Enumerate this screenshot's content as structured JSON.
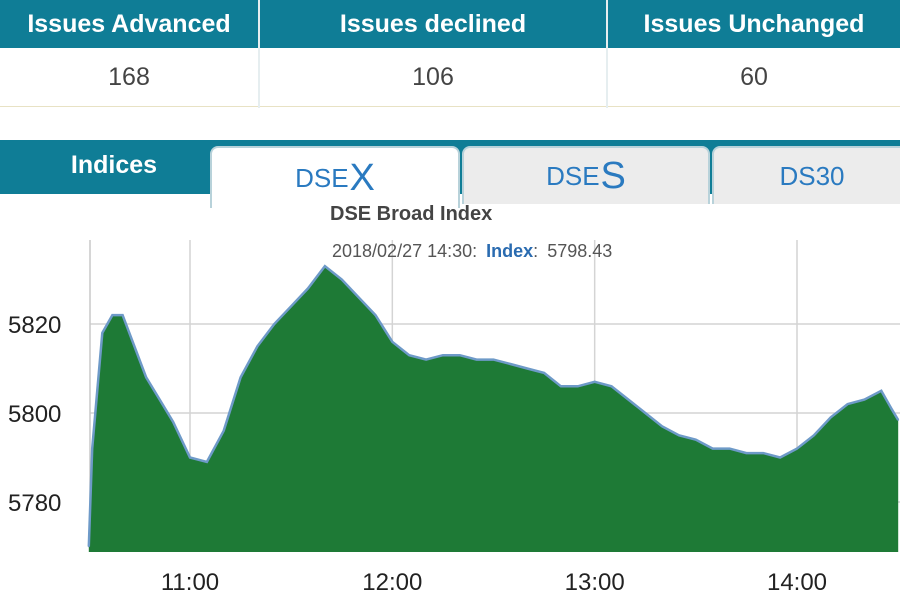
{
  "stats": {
    "advanced_label": "Issues Advanced",
    "advanced_value": "168",
    "declined_label": "Issues declined",
    "declined_value": "106",
    "unchanged_label": "Issues Unchanged",
    "unchanged_value": "60"
  },
  "tabs": {
    "indices_label": "Indices",
    "dsex_prefix": "DSE",
    "dsex_suffix": "X",
    "dses_prefix": "DSE",
    "dses_suffix": "S",
    "ds30_label": "DS30"
  },
  "colors": {
    "header_bg": "#0f7d96",
    "area_fill": "#1e7a36",
    "line": "#6e9ac8",
    "tab_text": "#2a7ac0"
  },
  "chart_data": {
    "type": "area",
    "title": "DSE Broad Index",
    "tooltip": {
      "timestamp": "2018/02/27 14:30:",
      "label": "Index",
      "value": "5798.43"
    },
    "x_ticks": [
      "11:00",
      "12:00",
      "13:00",
      "14:00"
    ],
    "y_ticks": [
      5780,
      5800,
      5820
    ],
    "ylim": [
      5766,
      5838
    ],
    "xlim": [
      "10:30",
      "14:30"
    ],
    "grid": true,
    "x": [
      "10:30",
      "10:31",
      "10:34",
      "10:37",
      "10:40",
      "10:43",
      "10:47",
      "10:51",
      "10:55",
      "11:00",
      "11:05",
      "11:10",
      "11:15",
      "11:20",
      "11:25",
      "11:30",
      "11:35",
      "11:40",
      "11:45",
      "11:50",
      "11:55",
      "12:00",
      "12:05",
      "12:10",
      "12:15",
      "12:20",
      "12:25",
      "12:30",
      "12:35",
      "12:40",
      "12:45",
      "12:50",
      "12:55",
      "13:00",
      "13:05",
      "13:10",
      "13:15",
      "13:20",
      "13:25",
      "13:30",
      "13:35",
      "13:40",
      "13:45",
      "13:50",
      "13:55",
      "14:00",
      "14:05",
      "14:10",
      "14:15",
      "14:20",
      "14:25",
      "14:28",
      "14:30"
    ],
    "values": [
      5770,
      5792,
      5818,
      5822,
      5822,
      5816,
      5808,
      5803,
      5798,
      5790,
      5789,
      5796,
      5808,
      5815,
      5820,
      5824,
      5828,
      5833,
      5830,
      5826,
      5822,
      5816,
      5813,
      5812,
      5813,
      5813,
      5812,
      5812,
      5811,
      5810,
      5809,
      5806,
      5806,
      5807,
      5806,
      5803,
      5800,
      5797,
      5795,
      5794,
      5792,
      5792,
      5791,
      5791,
      5790,
      5792,
      5795,
      5799,
      5802,
      5803,
      5805,
      5801,
      5798.43
    ]
  }
}
